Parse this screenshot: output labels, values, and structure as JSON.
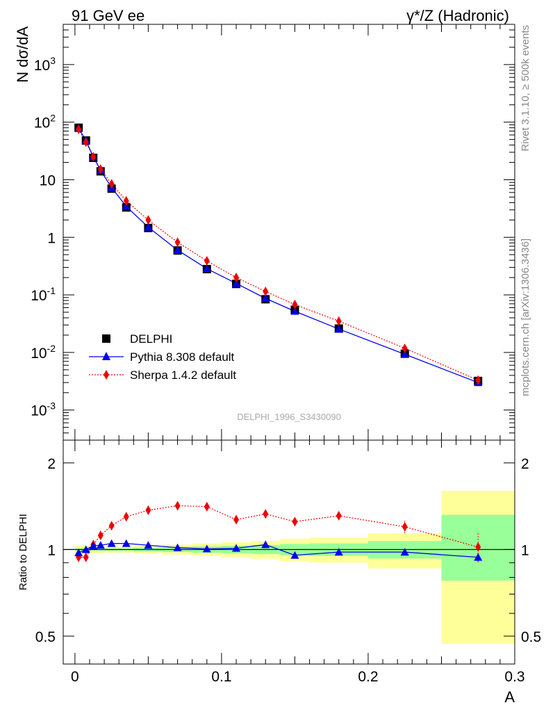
{
  "header": {
    "left_title": "91 GeV ee",
    "right_title": "γ*/Z (Hadronic)",
    "rivet_label": "Rivet 3.1.10, ≥ 500k events",
    "mcplots_label": "mcplots.cern.ch [arXiv:1306.3436]",
    "analysis_label": "DELPHI_1996_S3430090"
  },
  "colors": {
    "delphi": "#000000",
    "pythia": "#0000ee",
    "sherpa": "#ee0000",
    "band_inner": "#99ff99",
    "band_outer": "#ffff99"
  },
  "chart_data": [
    {
      "type": "line",
      "title": "",
      "ylabel": "N dσ/dA",
      "xlabel": "",
      "xlim": [
        -0.008,
        0.3
      ],
      "ylim": [
        0.0003,
        5000
      ],
      "yscale": "log",
      "ytick_labels": [
        "10^-3",
        "10^-2",
        "10^-1",
        "1",
        "10",
        "10^2",
        "10^3"
      ],
      "grid": false,
      "legend_position": "bottom-left",
      "x": [
        0.0025,
        0.0075,
        0.0125,
        0.0175,
        0.025,
        0.035,
        0.05,
        0.07,
        0.09,
        0.11,
        0.13,
        0.15,
        0.18,
        0.225,
        0.275
      ],
      "series": [
        {
          "name": "DELPHI",
          "marker": "square",
          "values": [
            80,
            48,
            24,
            14,
            7.0,
            3.3,
            1.45,
            0.59,
            0.28,
            0.155,
            0.084,
            0.055,
            0.026,
            0.0095,
            0.0032
          ]
        },
        {
          "name": "Pythia 8.308 default",
          "marker": "triangle",
          "linestyle": "solid",
          "values": [
            78,
            48,
            25,
            14.5,
            7.3,
            3.45,
            1.5,
            0.6,
            0.285,
            0.158,
            0.087,
            0.052,
            0.0255,
            0.0093,
            0.003
          ]
        },
        {
          "name": "Sherpa 1.4.2 default",
          "marker": "diamond",
          "linestyle": "dotted",
          "values": [
            75,
            45,
            25,
            15.3,
            8.5,
            4.3,
            2.0,
            0.82,
            0.39,
            0.2,
            0.115,
            0.068,
            0.035,
            0.0118,
            0.0033
          ]
        }
      ]
    },
    {
      "type": "line",
      "title": "",
      "ylabel": "Ratio to DELPHI",
      "xlabel": "A",
      "xlim": [
        -0.008,
        0.3
      ],
      "ylim": [
        0.4,
        2.4
      ],
      "yscale": "log",
      "ytick_labels": [
        "0.5",
        "1",
        "2"
      ],
      "xtick_labels": [
        "0",
        "0.1",
        "0.2",
        "0.3"
      ],
      "grid": false,
      "reference_line": 1,
      "x": [
        0.0025,
        0.0075,
        0.0125,
        0.0175,
        0.025,
        0.035,
        0.05,
        0.07,
        0.09,
        0.11,
        0.13,
        0.15,
        0.18,
        0.225,
        0.275
      ],
      "bands": [
        {
          "range": [
            0,
            0.005
          ],
          "inner": [
            0.99,
            1.01
          ],
          "outer": [
            0.97,
            1.03
          ]
        },
        {
          "range": [
            0.005,
            0.01
          ],
          "inner": [
            0.99,
            1.01
          ],
          "outer": [
            0.97,
            1.03
          ]
        },
        {
          "range": [
            0.01,
            0.015
          ],
          "inner": [
            0.99,
            1.01
          ],
          "outer": [
            0.97,
            1.03
          ]
        },
        {
          "range": [
            0.015,
            0.02
          ],
          "inner": [
            0.99,
            1.01
          ],
          "outer": [
            0.97,
            1.03
          ]
        },
        {
          "range": [
            0.02,
            0.03
          ],
          "inner": [
            0.99,
            1.01
          ],
          "outer": [
            0.975,
            1.025
          ]
        },
        {
          "range": [
            0.03,
            0.04
          ],
          "inner": [
            0.99,
            1.01
          ],
          "outer": [
            0.975,
            1.025
          ]
        },
        {
          "range": [
            0.04,
            0.06
          ],
          "inner": [
            0.985,
            1.015
          ],
          "outer": [
            0.97,
            1.03
          ]
        },
        {
          "range": [
            0.06,
            0.08
          ],
          "inner": [
            0.98,
            1.02
          ],
          "outer": [
            0.96,
            1.04
          ]
        },
        {
          "range": [
            0.08,
            0.1
          ],
          "inner": [
            0.975,
            1.025
          ],
          "outer": [
            0.95,
            1.05
          ]
        },
        {
          "range": [
            0.1,
            0.12
          ],
          "inner": [
            0.97,
            1.03
          ],
          "outer": [
            0.94,
            1.06
          ]
        },
        {
          "range": [
            0.12,
            0.14
          ],
          "inner": [
            0.965,
            1.035
          ],
          "outer": [
            0.93,
            1.07
          ]
        },
        {
          "range": [
            0.14,
            0.16
          ],
          "inner": [
            0.955,
            1.045
          ],
          "outer": [
            0.91,
            1.09
          ]
        },
        {
          "range": [
            0.16,
            0.2
          ],
          "inner": [
            0.95,
            1.05
          ],
          "outer": [
            0.9,
            1.1
          ]
        },
        {
          "range": [
            0.2,
            0.25
          ],
          "inner": [
            0.93,
            1.07
          ],
          "outer": [
            0.86,
            1.14
          ]
        },
        {
          "range": [
            0.25,
            0.3
          ],
          "inner": [
            0.78,
            1.32
          ],
          "outer": [
            0.47,
            1.6
          ]
        }
      ],
      "series": [
        {
          "name": "Pythia 8.308 default",
          "marker": "triangle",
          "linestyle": "solid",
          "values": [
            0.975,
            1.0,
            1.03,
            1.035,
            1.05,
            1.05,
            1.035,
            1.015,
            1.005,
            1.01,
            1.04,
            0.955,
            0.98,
            0.98,
            0.94
          ],
          "errors": [
            0.01,
            0.01,
            0.01,
            0.01,
            0.01,
            0.01,
            0.01,
            0.01,
            0.01,
            0.01,
            0.012,
            0.015,
            0.02,
            0.02,
            0.03
          ]
        },
        {
          "name": "Sherpa 1.4.2 default",
          "marker": "diamond",
          "linestyle": "dotted",
          "values": [
            0.94,
            0.94,
            1.04,
            1.12,
            1.21,
            1.3,
            1.37,
            1.42,
            1.41,
            1.27,
            1.33,
            1.25,
            1.31,
            1.2,
            1.02
          ],
          "errors": [
            0.01,
            0.01,
            0.01,
            0.01,
            0.015,
            0.015,
            0.02,
            0.02,
            0.02,
            0.02,
            0.03,
            0.035,
            0.04,
            0.06,
            0.12
          ]
        }
      ]
    }
  ]
}
